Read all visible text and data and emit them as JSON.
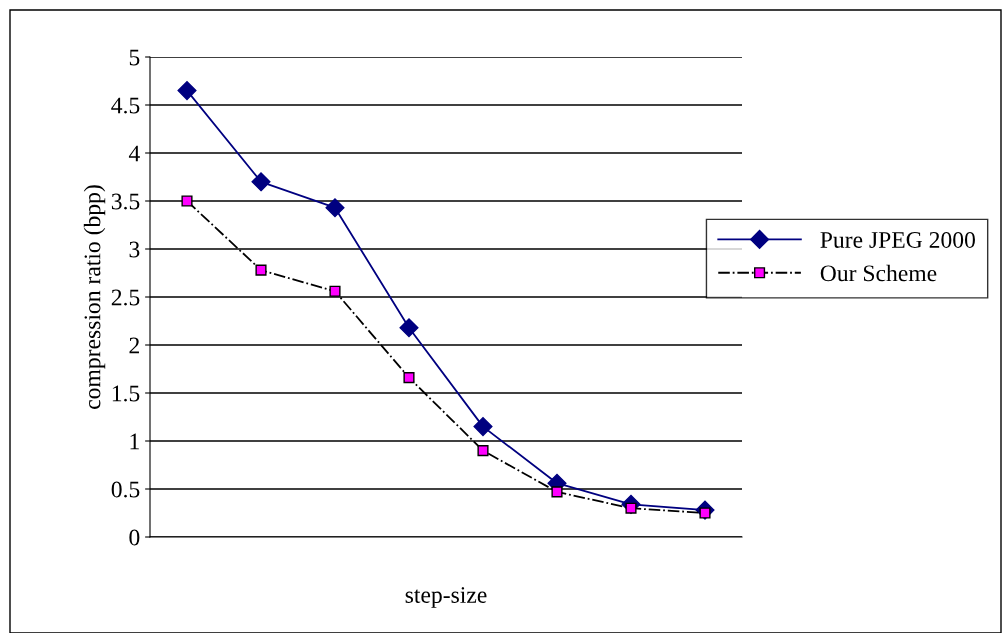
{
  "chart_data": {
    "type": "line",
    "xlabel": "step-size",
    "ylabel": "compression ratio (bpp)",
    "categories": [
      null,
      null,
      null,
      null,
      null,
      null,
      null,
      null
    ],
    "series": [
      {
        "name": "Pure JPEG 2000",
        "color": "#000080",
        "values": [
          4.65,
          3.7,
          3.43,
          2.18,
          1.15,
          0.56,
          0.34,
          0.28
        ],
        "marker": "diamond",
        "line_style": "solid"
      },
      {
        "name": "Our Scheme",
        "color": "#ff00ff",
        "values": [
          3.5,
          2.78,
          2.56,
          1.66,
          0.9,
          0.47,
          0.3,
          0.25
        ],
        "marker": "square",
        "line_style": "dashdot"
      }
    ],
    "ylim": [
      0,
      5
    ],
    "yticks": [
      0,
      0.5,
      1,
      1.5,
      2,
      2.5,
      3,
      3.5,
      4,
      4.5,
      5
    ],
    "grid": "y",
    "legend": "right"
  }
}
